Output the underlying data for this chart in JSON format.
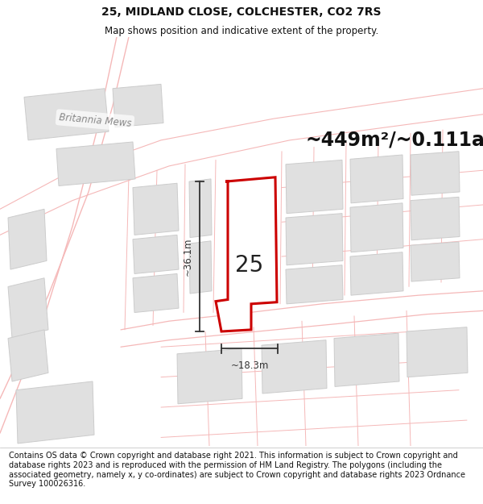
{
  "title": "25, MIDLAND CLOSE, COLCHESTER, CO2 7RS",
  "subtitle": "Map shows position and indicative extent of the property.",
  "area_text": "~449m²/~0.111ac.",
  "label_25": "25",
  "dim_width": "~18.3m",
  "dim_height": "~36.1m",
  "footer": "Contains OS data © Crown copyright and database right 2021. This information is subject to Crown copyright and database rights 2023 and is reproduced with the permission of HM Land Registry. The polygons (including the associated geometry, namely x, y co-ordinates) are subject to Crown copyright and database rights 2023 Ordnance Survey 100026316.",
  "map_bg": "#ffffff",
  "highlight_color": "#cc0000",
  "road_color": "#f5b8b8",
  "building_color": "#e0e0e0",
  "building_edge": "#cccccc",
  "text_color": "#111111",
  "dim_color": "#333333",
  "britannia_mews": "Britannia Mews",
  "title_fontsize": 10,
  "subtitle_fontsize": 8.5,
  "area_fontsize": 17,
  "label_fontsize": 20,
  "footer_fontsize": 7.0,
  "britannia_fontsize": 8.5
}
